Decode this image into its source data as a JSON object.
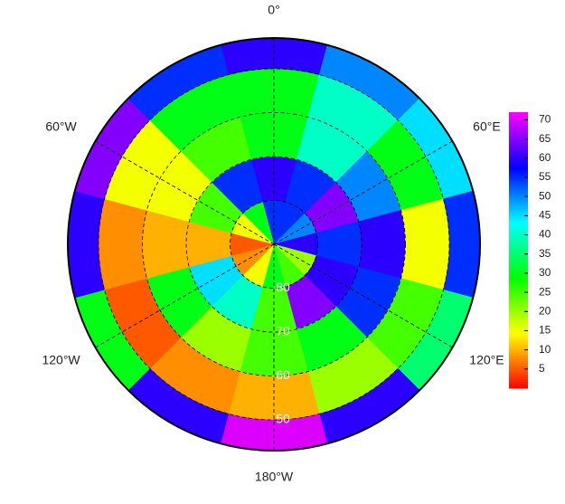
{
  "chart_data": {
    "type": "polar-grid",
    "lat_edges": [
      -90,
      -80,
      -70,
      -60,
      -50,
      -43
    ],
    "lon_centers": [
      0,
      30,
      60,
      90,
      120,
      150,
      180,
      210,
      240,
      270,
      300,
      330
    ],
    "values": [
      [
        55,
        55,
        50,
        60,
        20,
        25,
        30,
        15,
        8,
        5,
        15,
        30
      ],
      [
        60,
        55,
        65,
        55,
        60,
        65,
        25,
        40,
        45,
        10,
        25,
        55
      ],
      [
        30,
        40,
        50,
        60,
        55,
        30,
        25,
        20,
        30,
        10,
        15,
        25
      ],
      [
        30,
        40,
        30,
        15,
        25,
        20,
        10,
        8,
        5,
        8,
        15,
        30
      ],
      [
        60,
        50,
        45,
        55,
        35,
        60,
        70,
        60,
        30,
        60,
        65,
        55
      ]
    ],
    "lon_ticks": [
      {
        "value": 0,
        "label": "0°"
      },
      {
        "value": 60,
        "label": "60°E"
      },
      {
        "value": 120,
        "label": "120°E"
      },
      {
        "value": 180,
        "label": "180°W"
      },
      {
        "value": -120,
        "label": "120°W"
      },
      {
        "value": -60,
        "label": "60°W"
      }
    ],
    "lat_ticks": [
      {
        "value": -80,
        "label": "80"
      },
      {
        "value": -70,
        "label": "70"
      },
      {
        "value": -60,
        "label": "60"
      },
      {
        "value": -50,
        "label": "50"
      }
    ],
    "clim": [
      0,
      72
    ],
    "cticks": [
      5,
      10,
      15,
      20,
      25,
      30,
      35,
      40,
      45,
      50,
      55,
      60,
      65,
      70
    ],
    "colormap": [
      "#ff0000",
      "#ffff00",
      "#00ff00",
      "#00ffff",
      "#0000ff",
      "#ff00ff"
    ]
  }
}
